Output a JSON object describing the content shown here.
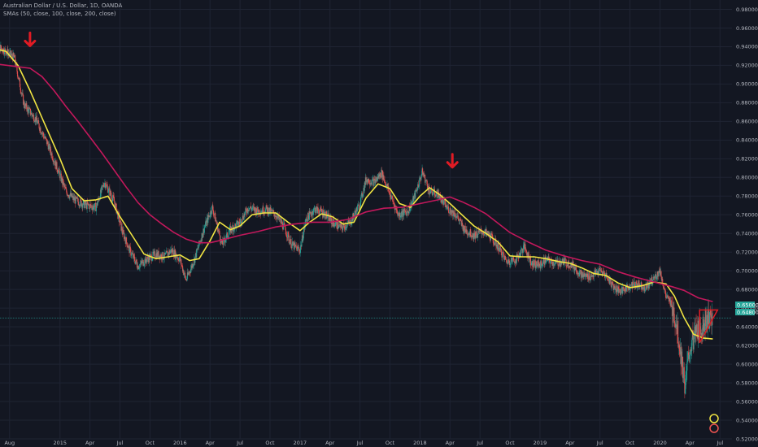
{
  "header": {
    "title": "Australian Dollar / U.S. Dollar, 1D, OANDA",
    "indicator": "SMAs (50, close, 100, close, 200, close)"
  },
  "price_labels": [
    "0.65000",
    "0.64800"
  ],
  "colors": {
    "background": "#131722",
    "grid": "#1f2433",
    "axis_text": "#b2b5be",
    "sma_fast": "#f0e442",
    "sma_slow": "#c2185b",
    "candle_up": "#26a69a",
    "candle_down": "#ef5350",
    "arrow": "#e01b24",
    "price_line": "#26a69a"
  },
  "chart_data": {
    "type": "candlestick",
    "title": "Australian Dollar / U.S. Dollar, 1D, OANDA",
    "ylim": [
      0.52,
      0.99
    ],
    "y_ticks": [
      "0.98000",
      "0.96000",
      "0.94000",
      "0.92000",
      "0.90000",
      "0.88000",
      "0.86000",
      "0.84000",
      "0.82000",
      "0.80000",
      "0.78000",
      "0.76000",
      "0.74000",
      "0.72000",
      "0.70000",
      "0.68000",
      "0.66000",
      "0.64000",
      "0.62000",
      "0.60000",
      "0.58000",
      "0.56000",
      "0.54000",
      "0.52000"
    ],
    "xlim": [
      2014.5,
      2020.6
    ],
    "x_ticks": [
      {
        "label": "Aug",
        "t": 2014.58
      },
      {
        "label": "2015",
        "t": 2015.0
      },
      {
        "label": "Apr",
        "t": 2015.25
      },
      {
        "label": "Jul",
        "t": 2015.5
      },
      {
        "label": "Oct",
        "t": 2015.75
      },
      {
        "label": "2016",
        "t": 2016.0
      },
      {
        "label": "Apr",
        "t": 2016.25
      },
      {
        "label": "Jul",
        "t": 2016.5
      },
      {
        "label": "Oct",
        "t": 2016.75
      },
      {
        "label": "2017",
        "t": 2017.0
      },
      {
        "label": "Apr",
        "t": 2017.25
      },
      {
        "label": "Jul",
        "t": 2017.5
      },
      {
        "label": "Oct",
        "t": 2017.75
      },
      {
        "label": "2018",
        "t": 2018.0
      },
      {
        "label": "Apr",
        "t": 2018.25
      },
      {
        "label": "Jul",
        "t": 2018.5
      },
      {
        "label": "Oct",
        "t": 2018.75
      },
      {
        "label": "2019",
        "t": 2019.0
      },
      {
        "label": "Apr",
        "t": 2019.25
      },
      {
        "label": "Jul",
        "t": 2019.5
      },
      {
        "label": "Oct",
        "t": 2019.75
      },
      {
        "label": "2020",
        "t": 2020.0
      },
      {
        "label": "Apr",
        "t": 2020.25
      },
      {
        "label": "Jul",
        "t": 2020.5
      }
    ],
    "series": [
      {
        "name": "Price",
        "points": [
          [
            2014.35,
            0.934
          ],
          [
            2014.45,
            0.943
          ],
          [
            2014.55,
            0.935
          ],
          [
            2014.62,
            0.928
          ],
          [
            2014.7,
            0.878
          ],
          [
            2014.8,
            0.862
          ],
          [
            2014.9,
            0.835
          ],
          [
            2014.97,
            0.812
          ],
          [
            2015.05,
            0.785
          ],
          [
            2015.12,
            0.776
          ],
          [
            2015.22,
            0.77
          ],
          [
            2015.3,
            0.768
          ],
          [
            2015.37,
            0.795
          ],
          [
            2015.45,
            0.775
          ],
          [
            2015.52,
            0.742
          ],
          [
            2015.58,
            0.722
          ],
          [
            2015.65,
            0.705
          ],
          [
            2015.72,
            0.712
          ],
          [
            2015.8,
            0.718
          ],
          [
            2015.87,
            0.715
          ],
          [
            2015.93,
            0.722
          ],
          [
            2016.0,
            0.712
          ],
          [
            2016.05,
            0.69
          ],
          [
            2016.12,
            0.712
          ],
          [
            2016.2,
            0.745
          ],
          [
            2016.27,
            0.768
          ],
          [
            2016.35,
            0.728
          ],
          [
            2016.42,
            0.744
          ],
          [
            2016.5,
            0.752
          ],
          [
            2016.57,
            0.768
          ],
          [
            2016.65,
            0.764
          ],
          [
            2016.72,
            0.766
          ],
          [
            2016.8,
            0.76
          ],
          [
            2016.87,
            0.746
          ],
          [
            2016.93,
            0.728
          ],
          [
            2017.0,
            0.722
          ],
          [
            2017.05,
            0.755
          ],
          [
            2017.12,
            0.766
          ],
          [
            2017.2,
            0.762
          ],
          [
            2017.27,
            0.752
          ],
          [
            2017.35,
            0.746
          ],
          [
            2017.42,
            0.752
          ],
          [
            2017.5,
            0.772
          ],
          [
            2017.55,
            0.798
          ],
          [
            2017.62,
            0.795
          ],
          [
            2017.68,
            0.805
          ],
          [
            2017.75,
            0.782
          ],
          [
            2017.82,
            0.76
          ],
          [
            2017.9,
            0.764
          ],
          [
            2017.95,
            0.778
          ],
          [
            2018.02,
            0.806
          ],
          [
            2018.08,
            0.785
          ],
          [
            2018.15,
            0.782
          ],
          [
            2018.22,
            0.768
          ],
          [
            2018.3,
            0.76
          ],
          [
            2018.37,
            0.744
          ],
          [
            2018.45,
            0.738
          ],
          [
            2018.52,
            0.742
          ],
          [
            2018.58,
            0.738
          ],
          [
            2018.65,
            0.726
          ],
          [
            2018.72,
            0.71
          ],
          [
            2018.8,
            0.712
          ],
          [
            2018.87,
            0.726
          ],
          [
            2018.93,
            0.708
          ],
          [
            2019.0,
            0.706
          ],
          [
            2019.05,
            0.712
          ],
          [
            2019.12,
            0.708
          ],
          [
            2019.2,
            0.71
          ],
          [
            2019.27,
            0.706
          ],
          [
            2019.35,
            0.695
          ],
          [
            2019.42,
            0.694
          ],
          [
            2019.5,
            0.7
          ],
          [
            2019.55,
            0.695
          ],
          [
            2019.62,
            0.682
          ],
          [
            2019.68,
            0.678
          ],
          [
            2019.75,
            0.684
          ],
          [
            2019.82,
            0.686
          ],
          [
            2019.88,
            0.682
          ],
          [
            2019.95,
            0.692
          ],
          [
            2020.0,
            0.7
          ],
          [
            2020.05,
            0.672
          ],
          [
            2020.1,
            0.664
          ],
          [
            2020.14,
            0.64
          ],
          [
            2020.18,
            0.605
          ],
          [
            2020.21,
            0.575
          ],
          [
            2020.24,
            0.61
          ],
          [
            2020.27,
            0.625
          ],
          [
            2020.31,
            0.636
          ],
          [
            2020.35,
            0.64
          ],
          [
            2020.4,
            0.65
          ],
          [
            2020.44,
            0.646
          ]
        ]
      },
      {
        "name": "SMA 50",
        "points": [
          [
            2014.35,
            0.932
          ],
          [
            2014.45,
            0.938
          ],
          [
            2014.55,
            0.935
          ],
          [
            2014.65,
            0.92
          ],
          [
            2014.75,
            0.893
          ],
          [
            2014.87,
            0.858
          ],
          [
            2015.0,
            0.82
          ],
          [
            2015.1,
            0.788
          ],
          [
            2015.2,
            0.775
          ],
          [
            2015.3,
            0.776
          ],
          [
            2015.4,
            0.78
          ],
          [
            2015.5,
            0.758
          ],
          [
            2015.6,
            0.738
          ],
          [
            2015.7,
            0.718
          ],
          [
            2015.8,
            0.713
          ],
          [
            2015.9,
            0.715
          ],
          [
            2016.0,
            0.717
          ],
          [
            2016.08,
            0.711
          ],
          [
            2016.16,
            0.713
          ],
          [
            2016.25,
            0.732
          ],
          [
            2016.33,
            0.752
          ],
          [
            2016.42,
            0.744
          ],
          [
            2016.5,
            0.748
          ],
          [
            2016.6,
            0.76
          ],
          [
            2016.7,
            0.762
          ],
          [
            2016.8,
            0.762
          ],
          [
            2016.9,
            0.752
          ],
          [
            2017.0,
            0.743
          ],
          [
            2017.08,
            0.752
          ],
          [
            2017.18,
            0.761
          ],
          [
            2017.27,
            0.758
          ],
          [
            2017.36,
            0.75
          ],
          [
            2017.45,
            0.752
          ],
          [
            2017.55,
            0.778
          ],
          [
            2017.65,
            0.793
          ],
          [
            2017.75,
            0.788
          ],
          [
            2017.83,
            0.772
          ],
          [
            2017.92,
            0.768
          ],
          [
            2018.0,
            0.78
          ],
          [
            2018.08,
            0.789
          ],
          [
            2018.17,
            0.781
          ],
          [
            2018.25,
            0.772
          ],
          [
            2018.35,
            0.76
          ],
          [
            2018.45,
            0.748
          ],
          [
            2018.55,
            0.74
          ],
          [
            2018.65,
            0.731
          ],
          [
            2018.75,
            0.716
          ],
          [
            2018.85,
            0.715
          ],
          [
            2018.95,
            0.715
          ],
          [
            2019.05,
            0.713
          ],
          [
            2019.15,
            0.71
          ],
          [
            2019.25,
            0.708
          ],
          [
            2019.35,
            0.703
          ],
          [
            2019.45,
            0.697
          ],
          [
            2019.55,
            0.695
          ],
          [
            2019.65,
            0.687
          ],
          [
            2019.75,
            0.682
          ],
          [
            2019.85,
            0.684
          ],
          [
            2019.95,
            0.688
          ],
          [
            2020.05,
            0.686
          ],
          [
            2020.12,
            0.673
          ],
          [
            2020.2,
            0.65
          ],
          [
            2020.28,
            0.632
          ],
          [
            2020.36,
            0.628
          ],
          [
            2020.44,
            0.627
          ]
        ]
      },
      {
        "name": "SMA 200",
        "points": [
          [
            2014.35,
            0.921
          ],
          [
            2014.5,
            0.921
          ],
          [
            2014.62,
            0.919
          ],
          [
            2014.75,
            0.917
          ],
          [
            2014.85,
            0.908
          ],
          [
            2014.95,
            0.893
          ],
          [
            2015.05,
            0.876
          ],
          [
            2015.15,
            0.86
          ],
          [
            2015.25,
            0.843
          ],
          [
            2015.35,
            0.826
          ],
          [
            2015.45,
            0.808
          ],
          [
            2015.55,
            0.79
          ],
          [
            2015.65,
            0.773
          ],
          [
            2015.75,
            0.76
          ],
          [
            2015.85,
            0.75
          ],
          [
            2015.95,
            0.741
          ],
          [
            2016.05,
            0.734
          ],
          [
            2016.15,
            0.73
          ],
          [
            2016.25,
            0.73
          ],
          [
            2016.35,
            0.733
          ],
          [
            2016.5,
            0.738
          ],
          [
            2016.65,
            0.742
          ],
          [
            2016.8,
            0.747
          ],
          [
            2016.95,
            0.75
          ],
          [
            2017.1,
            0.752
          ],
          [
            2017.25,
            0.752
          ],
          [
            2017.4,
            0.755
          ],
          [
            2017.55,
            0.763
          ],
          [
            2017.7,
            0.767
          ],
          [
            2017.85,
            0.768
          ],
          [
            2018.0,
            0.772
          ],
          [
            2018.15,
            0.776
          ],
          [
            2018.25,
            0.779
          ],
          [
            2018.35,
            0.774
          ],
          [
            2018.45,
            0.768
          ],
          [
            2018.55,
            0.761
          ],
          [
            2018.65,
            0.751
          ],
          [
            2018.75,
            0.741
          ],
          [
            2018.9,
            0.731
          ],
          [
            2019.05,
            0.722
          ],
          [
            2019.2,
            0.716
          ],
          [
            2019.35,
            0.711
          ],
          [
            2019.5,
            0.707
          ],
          [
            2019.65,
            0.699
          ],
          [
            2019.8,
            0.693
          ],
          [
            2019.95,
            0.688
          ],
          [
            2020.1,
            0.683
          ],
          [
            2020.2,
            0.679
          ],
          [
            2020.32,
            0.671
          ],
          [
            2020.44,
            0.667
          ]
        ]
      }
    ],
    "annotations": [
      {
        "type": "arrow-down",
        "t": 2014.75,
        "y": 0.947
      },
      {
        "type": "arrow-down",
        "t": 2018.27,
        "y": 0.817
      },
      {
        "type": "triangle",
        "points": [
          [
            2020.33,
            0.623
          ],
          [
            2020.48,
            0.658
          ],
          [
            2020.33,
            0.658
          ]
        ]
      }
    ],
    "current_price": 0.6495
  }
}
